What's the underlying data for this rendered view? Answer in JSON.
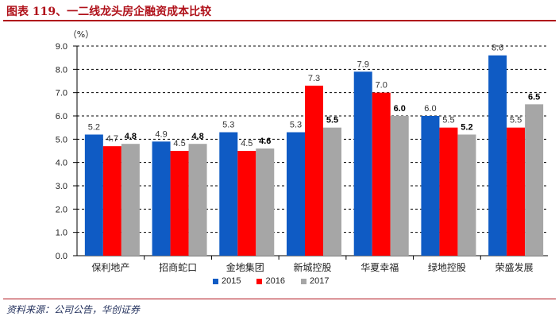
{
  "header": {
    "title": "图表 119、一二线龙头房企融资成本比较"
  },
  "footer": {
    "source": "资料来源：公司公告，华创证券"
  },
  "chart_data": {
    "type": "bar",
    "title": "",
    "ylabel": "（%）",
    "xlabel": "",
    "ylim": [
      0,
      9
    ],
    "yticks": [
      "0.0",
      "1.0",
      "2.0",
      "3.0",
      "4.0",
      "5.0",
      "6.0",
      "7.0",
      "8.0",
      "9.0"
    ],
    "grid": true,
    "legend_position": "bottom",
    "categories": [
      "保利地产",
      "招商蛇口",
      "金地集团",
      "新城控股",
      "华夏幸福",
      "绿地控股",
      "荣盛发展"
    ],
    "series": [
      {
        "name": "2015",
        "color": "#0f5bc4",
        "values": [
          5.2,
          4.9,
          5.3,
          5.3,
          7.9,
          6.0,
          8.6
        ],
        "labels": [
          "5.2",
          "4.9",
          "5.3",
          "5.3",
          "7.9",
          "6.0",
          "8.6"
        ]
      },
      {
        "name": "2016",
        "color": "#ff0000",
        "values": [
          4.7,
          4.5,
          4.5,
          7.3,
          7.0,
          5.5,
          5.5
        ],
        "labels": [
          "4.7",
          "4.5",
          "4.5",
          "7.3",
          "7.0",
          "5.5",
          "5.5"
        ]
      },
      {
        "name": "2017",
        "color": "#a6a6a6",
        "values": [
          4.8,
          4.8,
          4.6,
          5.5,
          6.0,
          5.2,
          6.5
        ],
        "labels": [
          "4.8",
          "4.8",
          "4.6",
          "5.5",
          "6.0",
          "5.2",
          "6.5"
        ]
      }
    ]
  }
}
